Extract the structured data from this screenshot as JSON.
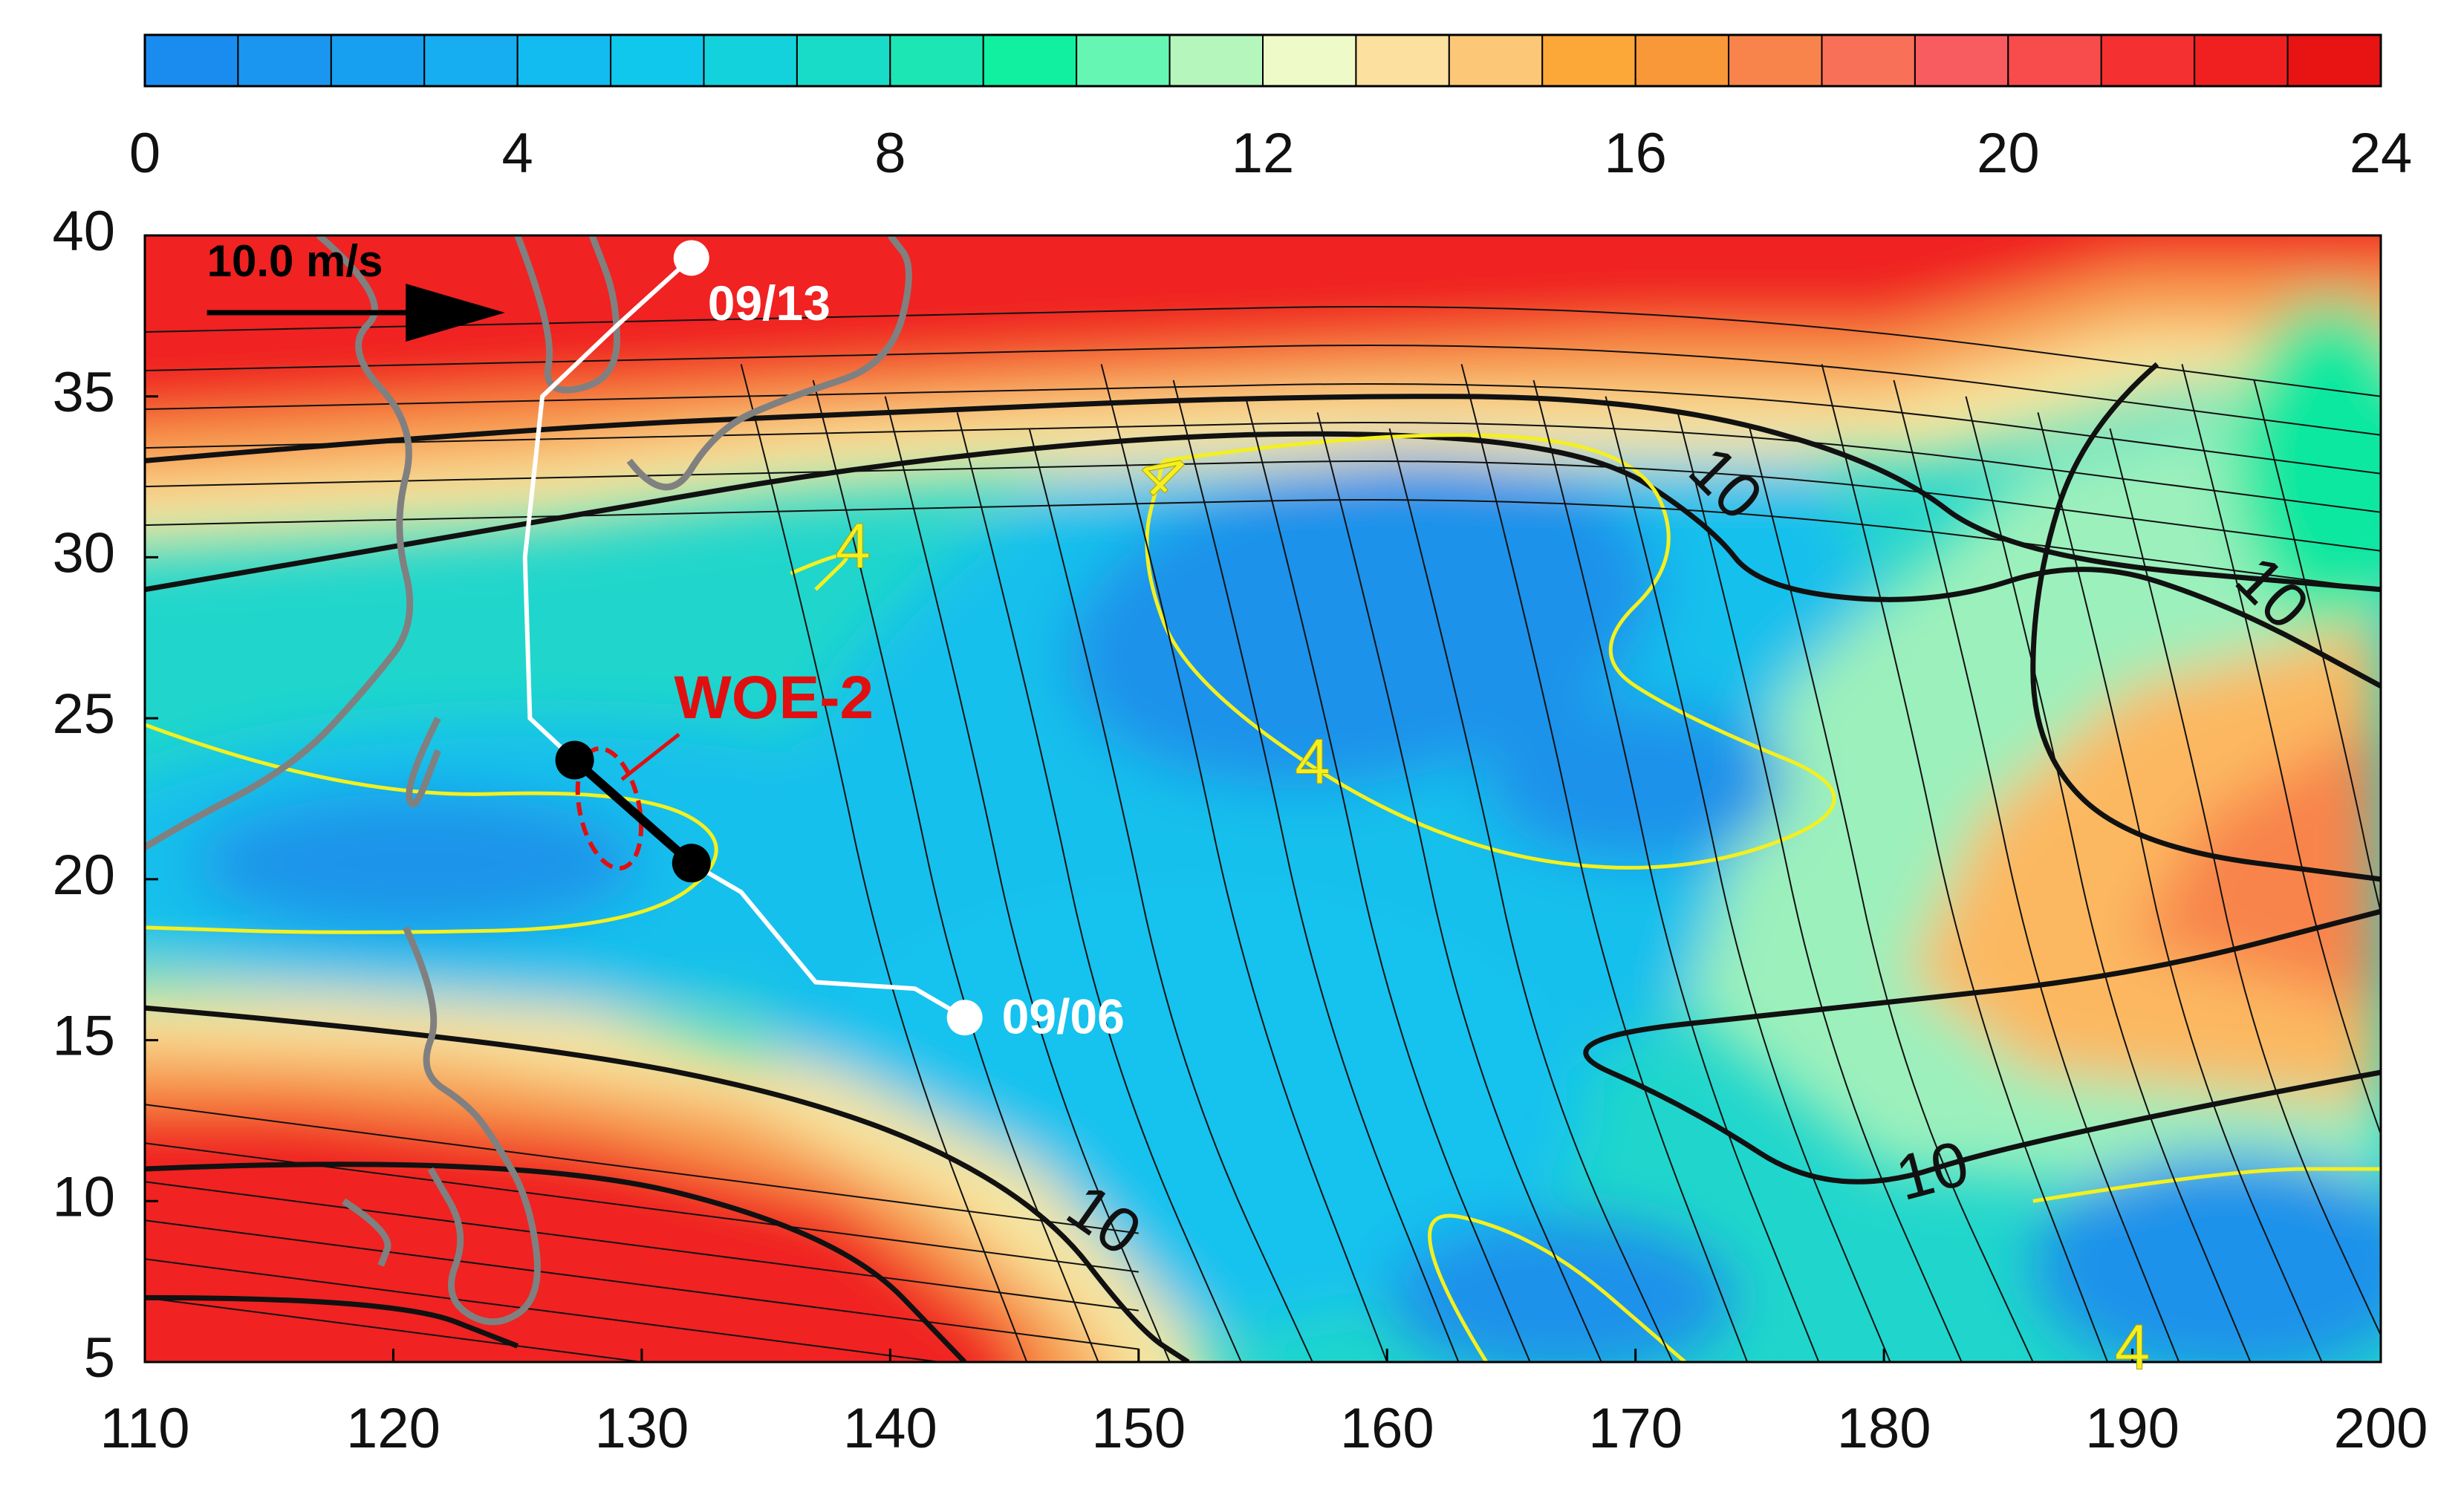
{
  "chart_data": {
    "type": "contour",
    "colorbar": {
      "lim": [
        0,
        24
      ],
      "ticks": [
        0,
        4,
        8,
        12,
        16,
        20,
        24
      ],
      "colors": [
        "#1a8cf0",
        "#1a96f0",
        "#18a0f0",
        "#16aef0",
        "#12bcf0",
        "#10c8ec",
        "#14d2dc",
        "#18dcc8",
        "#1ce6b4",
        "#10f0a0",
        "#66f6b4",
        "#b4f6bc",
        "#eefac8",
        "#fce0a0",
        "#fcc878",
        "#fca838",
        "#f89838",
        "#f8844c",
        "#f87058",
        "#f85c60",
        "#f84c4c",
        "#f43030",
        "#f02020",
        "#e81414"
      ]
    },
    "xlim": [
      110,
      200
    ],
    "xticks": [
      110,
      120,
      130,
      140,
      150,
      160,
      170,
      180,
      190,
      200
    ],
    "ylim": [
      5,
      40
    ],
    "yticks": [
      5,
      10,
      15,
      20,
      25,
      30,
      35,
      40
    ],
    "track": {
      "lon": [
        143,
        141,
        137,
        134,
        132,
        127.3,
        125.5,
        125.3,
        126,
        129,
        132
      ],
      "lat": [
        15.7,
        16.6,
        16.8,
        19.6,
        20.5,
        23.7,
        25,
        30,
        35,
        37.2,
        39.3
      ]
    },
    "track_start_label": "09/06",
    "track_end_label": "09/13",
    "region_label": "WOE-2",
    "reference_vector_label": "10.0 m/s",
    "contour_labels": [
      10,
      10,
      10,
      10,
      4,
      4,
      4,
      4
    ]
  }
}
